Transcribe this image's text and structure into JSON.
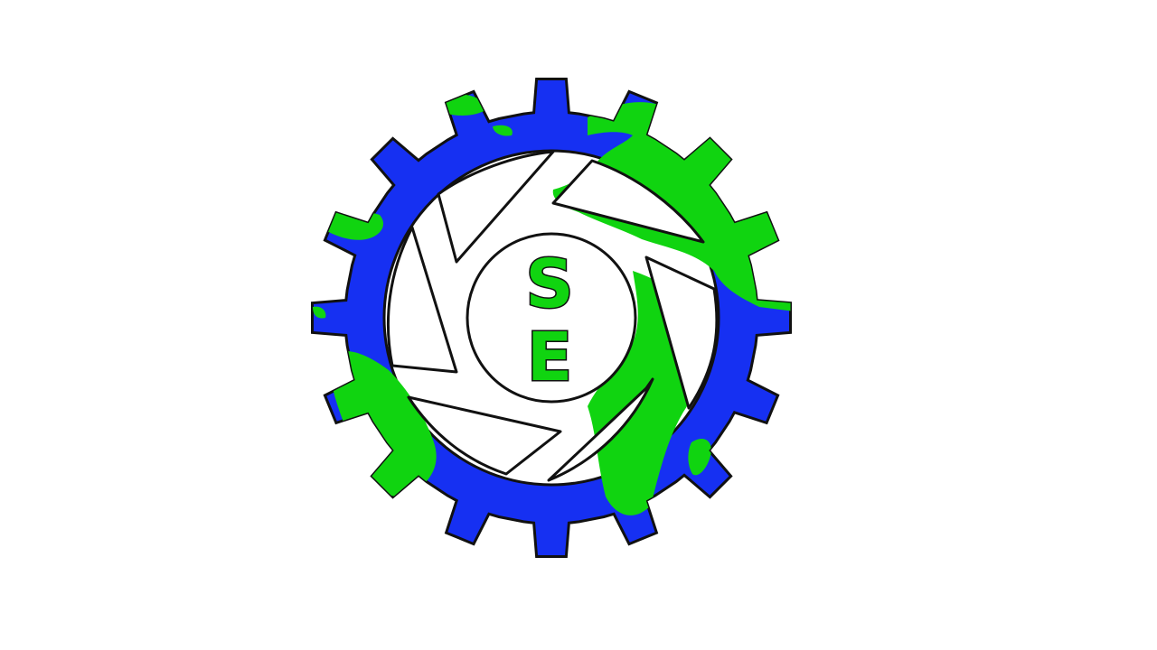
{
  "logo": {
    "name": "SE gear emblem",
    "letters": [
      "S",
      "E"
    ],
    "colors": {
      "background": "#ffffff",
      "gear_blue": "#1630f2",
      "land_green": "#10d410",
      "outline": "#111111",
      "hub_fill": "#ffffff"
    }
  }
}
